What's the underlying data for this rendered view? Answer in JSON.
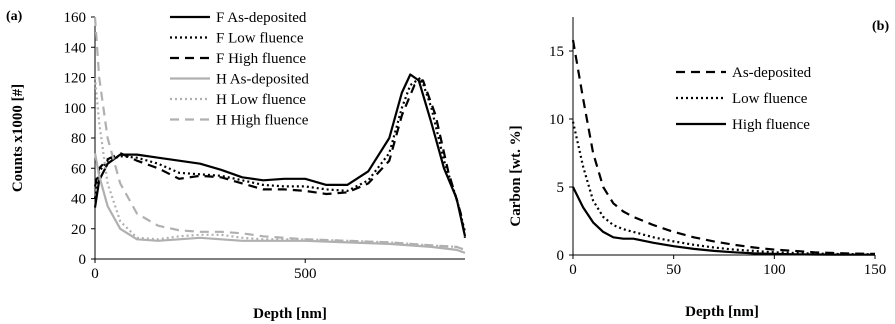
{
  "chart_data": [
    {
      "panel_label": "(a)",
      "type": "line",
      "xlabel": "Depth [nm]",
      "ylabel": "Counts x1000 [#]",
      "xlim": [
        0,
        880
      ],
      "ylim": [
        0,
        160
      ],
      "xticks": [
        0,
        500
      ],
      "yticks": [
        0,
        20,
        40,
        60,
        80,
        100,
        120,
        140,
        160
      ],
      "grid": false,
      "legend_position": "top-right",
      "series": [
        {
          "name": "F As-deposited",
          "color": "#000000",
          "dash": "solid",
          "x": [
            0,
            10,
            30,
            60,
            100,
            150,
            200,
            250,
            300,
            350,
            400,
            450,
            500,
            550,
            600,
            650,
            700,
            730,
            750,
            770,
            800,
            830,
            860,
            880
          ],
          "y": [
            34,
            52,
            63,
            69,
            69,
            67,
            65,
            63,
            59,
            54,
            52,
            53,
            53,
            49,
            49,
            58,
            80,
            110,
            122,
            118,
            90,
            60,
            40,
            15
          ]
        },
        {
          "name": "F Low fluence",
          "color": "#000000",
          "dash": "dot",
          "x": [
            0,
            10,
            30,
            60,
            100,
            150,
            200,
            250,
            300,
            350,
            400,
            450,
            500,
            550,
            600,
            650,
            700,
            730,
            750,
            775,
            800,
            830,
            860,
            880
          ],
          "y": [
            40,
            58,
            65,
            68,
            67,
            63,
            57,
            56,
            55,
            52,
            49,
            48,
            48,
            46,
            45,
            52,
            70,
            100,
            115,
            120,
            100,
            65,
            40,
            18
          ]
        },
        {
          "name": "F High fluence",
          "color": "#000000",
          "dash": "dash",
          "x": [
            0,
            10,
            30,
            60,
            100,
            150,
            200,
            250,
            300,
            350,
            400,
            450,
            500,
            550,
            600,
            650,
            700,
            730,
            760,
            780,
            810,
            840,
            870,
            880
          ],
          "y": [
            48,
            60,
            66,
            70,
            65,
            60,
            53,
            55,
            54,
            50,
            46,
            46,
            45,
            43,
            44,
            50,
            65,
            95,
            115,
            118,
            95,
            58,
            30,
            14
          ]
        },
        {
          "name": "H As-deposited",
          "color": "#b0b0b0",
          "dash": "solid",
          "x": [
            0,
            10,
            30,
            60,
            100,
            150,
            200,
            250,
            300,
            350,
            400,
            500,
            600,
            700,
            800,
            860,
            880
          ],
          "y": [
            70,
            55,
            35,
            20,
            13,
            12,
            13,
            14,
            13,
            12,
            12,
            12,
            11,
            10,
            8,
            6,
            4
          ]
        },
        {
          "name": "H Low fluence",
          "color": "#b0b0b0",
          "dash": "dot",
          "x": [
            0,
            10,
            30,
            60,
            100,
            150,
            200,
            250,
            300,
            350,
            400,
            500,
            600,
            700,
            800,
            860,
            880
          ],
          "y": [
            120,
            90,
            50,
            25,
            14,
            13,
            15,
            16,
            16,
            14,
            13,
            13,
            12,
            11,
            9,
            8,
            6
          ]
        },
        {
          "name": "H High fluence",
          "color": "#b0b0b0",
          "dash": "dash",
          "x": [
            0,
            10,
            30,
            60,
            100,
            150,
            200,
            250,
            300,
            350,
            400,
            500,
            600,
            700,
            800,
            860,
            880
          ],
          "y": [
            160,
            120,
            80,
            50,
            30,
            22,
            19,
            18,
            18,
            17,
            15,
            13,
            12,
            11,
            9,
            8,
            6
          ]
        }
      ]
    },
    {
      "panel_label": "(b)",
      "type": "line",
      "xlabel": "Depth [nm]",
      "ylabel": "Carbon [wt. %]",
      "xlim": [
        0,
        150
      ],
      "ylim": [
        0,
        17.5
      ],
      "xticks": [
        0,
        50,
        100,
        150
      ],
      "yticks": [
        0,
        5,
        10,
        15
      ],
      "grid": false,
      "legend_position": "top-right",
      "series": [
        {
          "name": "As-deposited",
          "color": "#000000",
          "dash": "dash",
          "x": [
            0,
            5,
            10,
            15,
            20,
            25,
            30,
            40,
            50,
            60,
            70,
            80,
            90,
            100,
            110,
            120,
            130,
            140,
            150
          ],
          "y": [
            15.8,
            11.5,
            7.5,
            5.0,
            3.8,
            3.2,
            2.8,
            2.2,
            1.7,
            1.3,
            1.0,
            0.75,
            0.55,
            0.4,
            0.3,
            0.2,
            0.15,
            0.1,
            0.08
          ]
        },
        {
          "name": "Low fluence",
          "color": "#000000",
          "dash": "dot",
          "x": [
            0,
            5,
            10,
            15,
            20,
            25,
            30,
            40,
            50,
            60,
            70,
            80,
            90,
            100,
            110,
            120,
            130,
            140,
            150
          ],
          "y": [
            9.8,
            6.5,
            4.0,
            2.8,
            2.2,
            1.9,
            1.7,
            1.3,
            1.0,
            0.75,
            0.55,
            0.4,
            0.3,
            0.2,
            0.15,
            0.1,
            0.08,
            0.06,
            0.05
          ]
        },
        {
          "name": "High fluence",
          "color": "#000000",
          "dash": "solid",
          "x": [
            0,
            5,
            10,
            15,
            20,
            25,
            30,
            40,
            50,
            60,
            70,
            80,
            90,
            100,
            110,
            120,
            130,
            140,
            150
          ],
          "y": [
            5.0,
            3.5,
            2.4,
            1.7,
            1.3,
            1.2,
            1.2,
            0.9,
            0.65,
            0.45,
            0.3,
            0.2,
            0.12,
            0.08,
            0.05,
            0.04,
            0.03,
            0.02,
            0.02
          ]
        }
      ]
    }
  ]
}
